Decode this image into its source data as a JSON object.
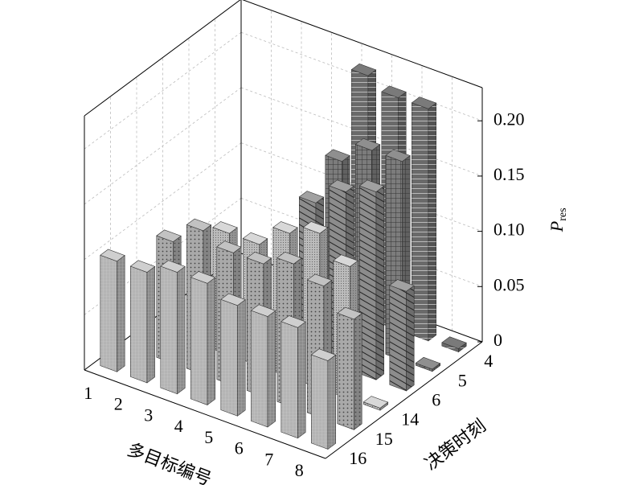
{
  "chart_data": {
    "type": "bar3d",
    "xlabel": "多目标编号",
    "ylabel": "决策时刻",
    "zlabel": "P",
    "zlabel_subscript": "res",
    "categories": [
      "1",
      "2",
      "3",
      "4",
      "5",
      "6",
      "7",
      "8"
    ],
    "zlim": [
      0,
      0.23
    ],
    "zticks": [
      0,
      0.05,
      {
        "value": 0.1,
        "label": "0.10"
      },
      0.15,
      {
        "value": 0.2,
        "label": "0.20"
      }
    ],
    "grid": true,
    "series": [
      {
        "name": "16",
        "color": "#b4b4b4",
        "values": [
          0.1,
          0.1,
          0.11,
          0.11,
          0.1,
          0.1,
          0.1,
          0.08
        ]
      },
      {
        "name": "15",
        "color": "#a9a9a9",
        "values": [
          0,
          0.11,
          0.13,
          0.12,
          0.12,
          0.13,
          0.12,
          0.1
        ]
      },
      {
        "name": "14",
        "color": "#bcbcbc",
        "values": [
          0,
          0,
          0.11,
          0.11,
          0.13,
          0.14,
          0.12,
          0.002
        ]
      },
      {
        "name": "6",
        "color": "#8c8c8c",
        "values": [
          0,
          0,
          0,
          0,
          0.14,
          0.16,
          0.17,
          0.09
        ]
      },
      {
        "name": "5",
        "color": "#7c7c7c",
        "values": [
          0,
          0,
          0,
          0,
          0.16,
          0.18,
          0.18,
          0.002
        ]
      },
      {
        "name": "4",
        "color": "#6a6a6a",
        "values": [
          0,
          0,
          0,
          0,
          0.22,
          0.21,
          0.21,
          0.003
        ]
      }
    ]
  }
}
